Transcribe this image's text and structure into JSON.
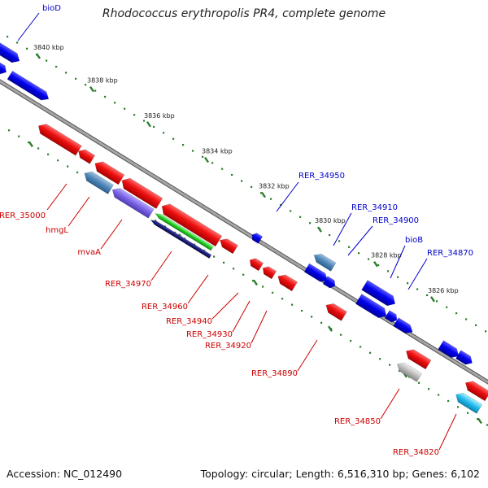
{
  "title": "Rhodococcus erythropolis PR4, complete genome",
  "footer": {
    "accession": "Accession: NC_012490",
    "summary": "Topology: circular; Length: 6,516,310 bp; Genes: 6,102"
  },
  "colors": {
    "backbone": "#888888",
    "tick": "#2e7d2e",
    "forward_label": "#0000cc",
    "reverse_label": "#cc0000"
  },
  "ticks": [
    "3840 kbp",
    "3838 kbp",
    "3836 kbp",
    "3834 kbp",
    "3832 kbp",
    "3830 kbp",
    "3828 kbp",
    "3826 kbp"
  ],
  "labels": {
    "forward": [
      "bioD",
      "RER_34950",
      "RER_34910",
      "RER_34900",
      "bioB",
      "RER_34870"
    ],
    "reverse": [
      "RER_35000",
      "hmgL",
      "mvaA",
      "RER_34970",
      "RER_34960",
      "RER_34940",
      "RER_34930",
      "RER_34920",
      "RER_34890",
      "RER_34850",
      "RER_34820"
    ]
  }
}
